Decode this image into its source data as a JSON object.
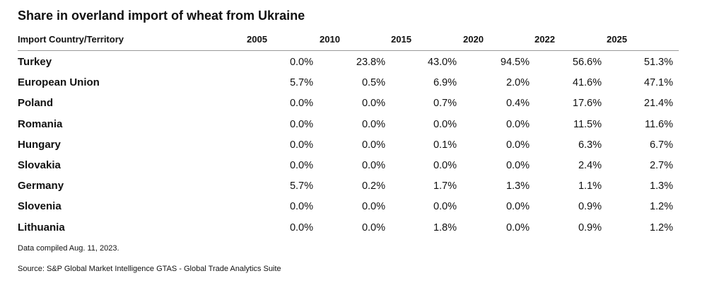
{
  "chart_data": {
    "type": "table",
    "title": "Share in overland import of wheat from Ukraine",
    "column_header": "Import Country/Territory",
    "years": [
      "2005",
      "2010",
      "2015",
      "2020",
      "2022",
      "2025"
    ],
    "rows": [
      {
        "country": "Turkey",
        "values": [
          "0.0%",
          "23.8%",
          "43.0%",
          "94.5%",
          "56.6%",
          "51.3%"
        ]
      },
      {
        "country": "European Union",
        "values": [
          "5.7%",
          "0.5%",
          "6.9%",
          "2.0%",
          "41.6%",
          "47.1%"
        ]
      },
      {
        "country": "Poland",
        "values": [
          "0.0%",
          "0.0%",
          "0.7%",
          "0.4%",
          "17.6%",
          "21.4%"
        ]
      },
      {
        "country": "Romania",
        "values": [
          "0.0%",
          "0.0%",
          "0.0%",
          "0.0%",
          "11.5%",
          "11.6%"
        ]
      },
      {
        "country": "Hungary",
        "values": [
          "0.0%",
          "0.0%",
          "0.1%",
          "0.0%",
          "6.3%",
          "6.7%"
        ]
      },
      {
        "country": "Slovakia",
        "values": [
          "0.0%",
          "0.0%",
          "0.0%",
          "0.0%",
          "2.4%",
          "2.7%"
        ]
      },
      {
        "country": "Germany",
        "values": [
          "5.7%",
          "0.2%",
          "1.7%",
          "1.3%",
          "1.1%",
          "1.3%"
        ]
      },
      {
        "country": "Slovenia",
        "values": [
          "0.0%",
          "0.0%",
          "0.0%",
          "0.0%",
          "0.9%",
          "1.2%"
        ]
      },
      {
        "country": "Lithuania",
        "values": [
          "0.0%",
          "0.0%",
          "1.8%",
          "0.0%",
          "0.9%",
          "1.2%"
        ]
      }
    ],
    "note": "Data compiled Aug. 11, 2023.",
    "source": "Source: S&P Global Market Intelligence GTAS - Global Trade Analytics Suite"
  }
}
